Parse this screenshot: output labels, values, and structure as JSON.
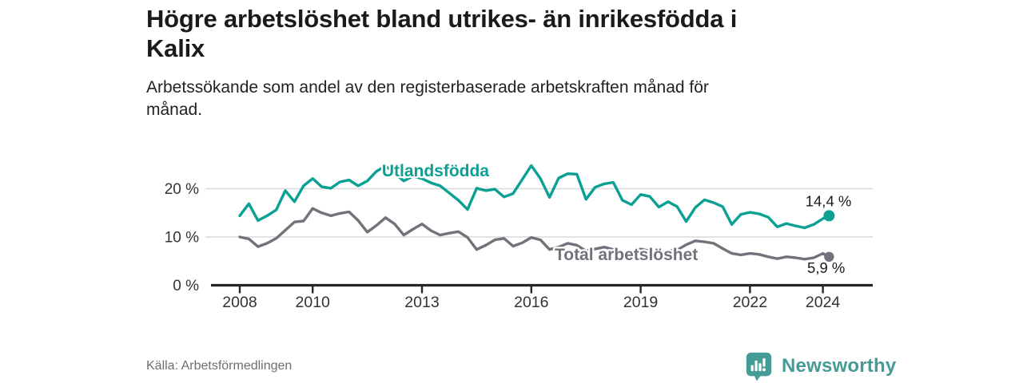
{
  "header": {
    "title": "Högre arbetslöshet bland utrikes- än inrikesfödda i Kalix",
    "title_lines": [
      "Högre arbetslöshet bland utrikes- än inrikesfödda i",
      "Kalix"
    ],
    "subtitle": "Arbetssökande som andel av den registerbaserade arbetskraften månad för månad.",
    "subtitle_lines": [
      "Arbetssökande som andel av den registerbaserade arbetskraften månad för",
      "månad."
    ]
  },
  "chart_data": {
    "type": "line",
    "unit": "%",
    "grid": "horizontal",
    "xlim": [
      2007.2,
      2025.4
    ],
    "ylim": [
      0,
      26
    ],
    "x_ticks": [
      2008,
      2010,
      2013,
      2016,
      2019,
      2022,
      2024
    ],
    "y_ticks": [
      {
        "value": 0,
        "label": "0 %"
      },
      {
        "value": 10,
        "label": "10 %"
      },
      {
        "value": 20,
        "label": "20 %"
      }
    ],
    "x": [
      2008,
      2008.25,
      2008.5,
      2008.75,
      2009,
      2009.25,
      2009.5,
      2009.75,
      2010,
      2010.25,
      2010.5,
      2010.75,
      2011,
      2011.25,
      2011.5,
      2011.75,
      2012,
      2012.25,
      2012.5,
      2012.75,
      2013,
      2013.25,
      2013.5,
      2013.75,
      2014,
      2014.25,
      2014.5,
      2014.75,
      2015,
      2015.25,
      2015.5,
      2015.75,
      2016,
      2016.25,
      2016.5,
      2016.75,
      2017,
      2017.25,
      2017.5,
      2017.75,
      2018,
      2018.25,
      2018.5,
      2018.75,
      2019,
      2019.25,
      2019.5,
      2019.75,
      2020,
      2020.25,
      2020.5,
      2020.75,
      2021,
      2021.25,
      2021.5,
      2021.75,
      2022,
      2022.25,
      2022.5,
      2022.75,
      2023,
      2023.25,
      2023.5,
      2023.75,
      2024,
      2024.17
    ],
    "series": [
      {
        "name": "Utlandsfödda",
        "color": "#0aa094",
        "end_label": "14,4 %",
        "end_value": 14.4,
        "values": [
          14.4,
          16.9,
          13.4,
          14.4,
          15.6,
          19.6,
          17.3,
          20.6,
          22.1,
          20.4,
          20.1,
          21.4,
          21.8,
          20.6,
          21.6,
          23.6,
          24.7,
          23.2,
          21.6,
          22.6,
          22.1,
          21.2,
          20.6,
          19.1,
          17.6,
          15.7,
          20.1,
          19.6,
          19.9,
          18.3,
          19.0,
          21.9,
          24.8,
          22.1,
          18.2,
          22.2,
          23.1,
          23.0,
          17.8,
          20.3,
          21.0,
          21.3,
          17.6,
          16.7,
          18.8,
          18.4,
          16.2,
          17.3,
          16.3,
          13.2,
          16.1,
          17.7,
          17.1,
          16.3,
          12.6,
          14.7,
          15.1,
          14.8,
          14.1,
          12.1,
          12.8,
          12.3,
          11.9,
          12.6,
          13.8,
          14.4
        ]
      },
      {
        "name": "Total arbetslöshet",
        "color": "#74717a",
        "end_label": "5,9 %",
        "end_value": 5.9,
        "values": [
          10.0,
          9.6,
          8.0,
          8.7,
          9.7,
          11.4,
          13.1,
          13.3,
          15.9,
          15.0,
          14.4,
          14.9,
          15.2,
          13.4,
          11.0,
          12.4,
          14.0,
          12.7,
          10.4,
          11.6,
          12.7,
          11.3,
          10.4,
          10.8,
          11.1,
          9.9,
          7.4,
          8.3,
          9.4,
          9.7,
          8.1,
          8.8,
          9.9,
          9.4,
          7.4,
          7.9,
          8.7,
          8.3,
          7.1,
          7.5,
          7.9,
          7.4,
          6.6,
          7.0,
          7.5,
          7.1,
          6.7,
          7.1,
          7.3,
          8.4,
          9.2,
          9.0,
          8.7,
          7.6,
          6.6,
          6.3,
          6.6,
          6.4,
          5.9,
          5.5,
          5.9,
          5.7,
          5.4,
          5.7,
          6.6,
          5.9
        ]
      }
    ],
    "annotations": [
      {
        "text": "Utlandsfödda",
        "x": 2011.9,
        "y": 22.6,
        "color": "#0aa094"
      },
      {
        "text": "Total arbetslöshet",
        "x": 2016.64,
        "y": 5.2,
        "color": "#74717a"
      }
    ]
  },
  "footer": {
    "source": "Källa: Arbetsförmedlingen",
    "logo_text": "Newsworthy",
    "logo_color": "#459c96"
  },
  "style": {
    "grid_color": "#d9d9d9",
    "axis_color": "#262626",
    "tick_label_color": "#333333",
    "value_label_color": "#1a1a1a"
  }
}
